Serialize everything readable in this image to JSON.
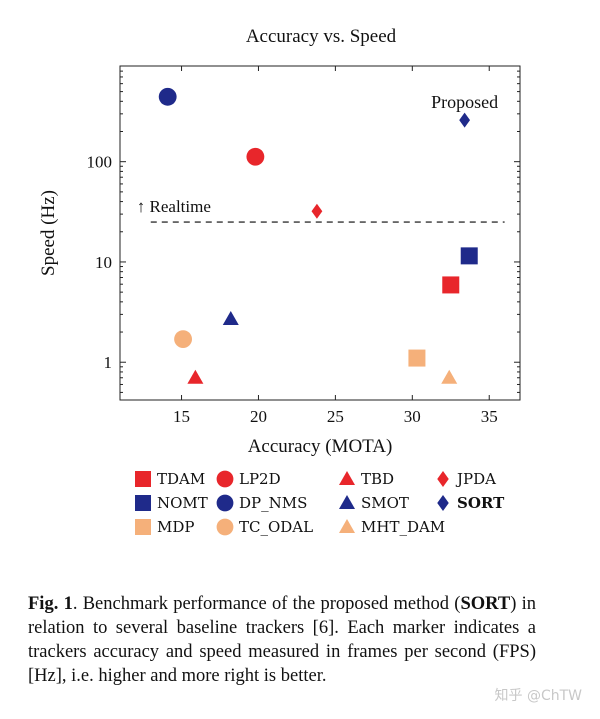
{
  "chart_data": {
    "type": "scatter",
    "title": "Accuracy vs. Speed",
    "xlabel": "Accuracy (MOTA)",
    "ylabel": "Speed (Hz)",
    "xscale": "linear",
    "yscale": "log",
    "xlim": [
      11,
      37
    ],
    "ylim": [
      0.42,
      900
    ],
    "xticks": [
      15,
      20,
      25,
      30,
      35
    ],
    "xtick_labels": [
      "15",
      "20",
      "25",
      "30",
      "35"
    ],
    "yticks": [
      1,
      10,
      100
    ],
    "ytick_labels": [
      "1",
      "10",
      "100"
    ],
    "realtime_line": {
      "y": 25,
      "x_start": 13,
      "x_end": 36,
      "label": "↑ Realtime"
    },
    "annotation": {
      "text": "Proposed",
      "target": "SORT"
    },
    "colors": {
      "red": "#e8262b",
      "navy": "#1f2a8a",
      "orange": "#f5b07a"
    },
    "series": [
      {
        "name": "TDAM",
        "marker": "square",
        "color": "#e8262b",
        "x": 32.5,
        "y": 5.9
      },
      {
        "name": "LP2D",
        "marker": "circle",
        "color": "#e8262b",
        "x": 19.8,
        "y": 112
      },
      {
        "name": "TBD",
        "marker": "triangle",
        "color": "#e8262b",
        "x": 15.9,
        "y": 0.7
      },
      {
        "name": "JPDA",
        "marker": "diamond",
        "color": "#e8262b",
        "x": 23.8,
        "y": 32
      },
      {
        "name": "NOMT",
        "marker": "square",
        "color": "#1f2a8a",
        "x": 33.7,
        "y": 11.5
      },
      {
        "name": "DP_NMS",
        "marker": "circle",
        "color": "#1f2a8a",
        "x": 14.1,
        "y": 444
      },
      {
        "name": "SMOT",
        "marker": "triangle",
        "color": "#1f2a8a",
        "x": 18.2,
        "y": 2.7
      },
      {
        "name": "SORT",
        "marker": "diamond",
        "color": "#1f2a8a",
        "x": 33.4,
        "y": 260
      },
      {
        "name": "MDP",
        "marker": "square",
        "color": "#f5b07a",
        "x": 30.3,
        "y": 1.1
      },
      {
        "name": "TC_ODAL",
        "marker": "circle",
        "color": "#f5b07a",
        "x": 15.1,
        "y": 1.7
      },
      {
        "name": "MHT_DAM",
        "marker": "triangle",
        "color": "#f5b07a",
        "x": 32.4,
        "y": 0.7
      }
    ]
  },
  "legend": {
    "items": [
      {
        "label": "TDAM",
        "marker": "square",
        "color": "#e8262b"
      },
      {
        "label": "LP2D",
        "marker": "circle",
        "color": "#e8262b"
      },
      {
        "label": "TBD",
        "marker": "triangle",
        "color": "#e8262b"
      },
      {
        "label": "JPDA",
        "marker": "diamond",
        "color": "#e8262b"
      },
      {
        "label": "NOMT",
        "marker": "square",
        "color": "#1f2a8a"
      },
      {
        "label": "DP_NMS",
        "marker": "circle",
        "color": "#1f2a8a"
      },
      {
        "label": "SMOT",
        "marker": "triangle",
        "color": "#1f2a8a"
      },
      {
        "label": "SORT",
        "marker": "diamond",
        "color": "#1f2a8a",
        "bold": true
      },
      {
        "label": "MDP",
        "marker": "square",
        "color": "#f5b07a"
      },
      {
        "label": "TC_ODAL",
        "marker": "circle",
        "color": "#f5b07a"
      },
      {
        "label": "MHT_DAM",
        "marker": "triangle",
        "color": "#f5b07a"
      }
    ]
  },
  "caption": {
    "label": "Fig. 1",
    "text_1": ".   Benchmark performance of the proposed method (",
    "bold_word": "SORT",
    "text_2": ") in relation to several baseline trackers [6].  Each marker indicates a trackers accuracy and speed measured in frames per second (FPS) [Hz], i.e. higher and more right is better."
  },
  "watermark": "知乎 @ChTW"
}
